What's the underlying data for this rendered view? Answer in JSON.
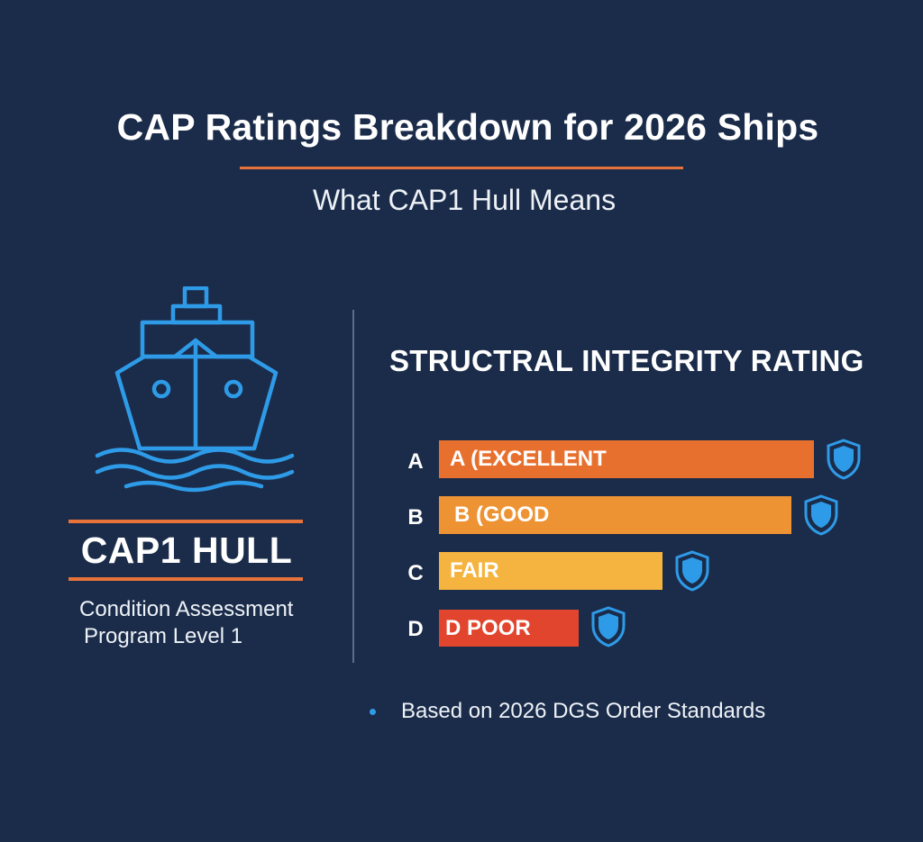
{
  "header": {
    "title": "CAP Ratings Breakdown for 2026 Ships",
    "subtitle": "What CAP1 Hull Means"
  },
  "hull": {
    "icon": "ship-icon",
    "label": "CAP1 HULL",
    "description_line1": "Condition Assessment",
    "description_line2": "Program Level 1"
  },
  "rating": {
    "title": "STRUCTRAL INTEGRITY RATING",
    "items": [
      {
        "grade": "A",
        "label": "A (EXCELLENT",
        "level": 0.99,
        "color": "#e8702f",
        "icon": "shield-icon"
      },
      {
        "grade": "B",
        "label": "B (GOOD",
        "level": 0.93,
        "color": "#ee9333",
        "icon": "shield-icon"
      },
      {
        "grade": "C",
        "label": "FAIR",
        "level": 0.59,
        "color": "#f5b33f",
        "icon": "shield-icon"
      },
      {
        "grade": "D",
        "label": "D POOR",
        "level": 0.37,
        "color": "#e2452d",
        "icon": "shield-icon"
      }
    ]
  },
  "footnote": "Based on 2026 DGS Order Standards",
  "colors": {
    "background": "#1b2c4a",
    "accent": "#e8733a",
    "icon_blue": "#2e9be8"
  }
}
